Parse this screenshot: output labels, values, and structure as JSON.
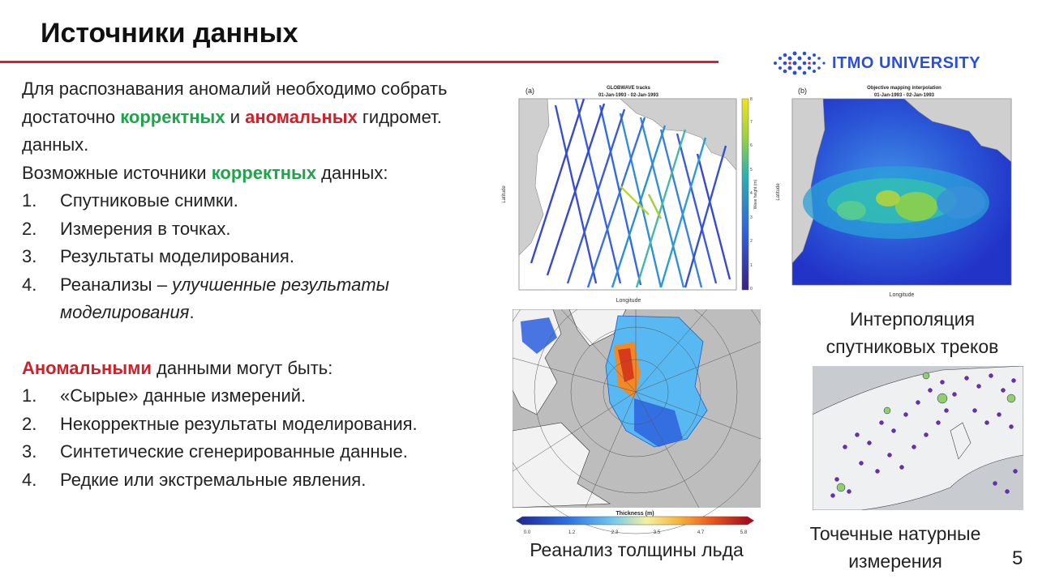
{
  "title": "Источники данных",
  "logo": {
    "text": "ITMO UNIVERSITY"
  },
  "body": {
    "intro": {
      "a": "Для распознавания аномалий необходимо собрать достаточно ",
      "b": "корректных",
      "c": " и ",
      "d": "аномальных",
      "e": " гидромет. данных."
    },
    "possible": {
      "a": "Возможные источники ",
      "b": "корректных",
      "c": " данных:"
    },
    "correct_items": [
      {
        "num": "1.",
        "text": "Спутниковые снимки."
      },
      {
        "num": "2.",
        "text": "Измерения в точках."
      },
      {
        "num": "3.",
        "text": "Результаты моделирования."
      },
      {
        "num": "4.",
        "text": "Реанализы – ",
        "italic": "улучшенные результаты моделирования",
        "tail": "."
      }
    ],
    "anomalous": {
      "a": "Аномальными",
      "b": " данными могут быть:"
    },
    "anomalous_items": [
      {
        "num": "1.",
        "text": "«Сырые» данные измерений."
      },
      {
        "num": "2.",
        "text": "Некорректные результаты моделирования."
      },
      {
        "num": "3.",
        "text": "Синтетические сгенерированные данные."
      },
      {
        "num": "4.",
        "text": "Редкие или экстремальные явления."
      }
    ]
  },
  "figures": {
    "tracks": {
      "panel_label": "(a)",
      "title_line1": "GLOBWAVE tracks",
      "title_line2": "01-Jan-1993 - 02-Jan-1993",
      "ylabel": "Latitude",
      "xlabel": "Longitude",
      "colorbar_label": "Wave height (m)",
      "colorbar_ticks": [
        "0",
        "1",
        "2",
        "3",
        "4",
        "5",
        "6",
        "7",
        "8"
      ]
    },
    "interp": {
      "panel_label": "(b)",
      "title_line1": "Objective mapping interpolation",
      "title_line2": "01-Jan-1993 - 02-Jan-1993",
      "ylabel": "Latitude",
      "xlabel": "Longitude"
    },
    "ice": {
      "colorbar_label": "Thickness (m)",
      "colorbar_ticks": [
        "0.0",
        "1.2",
        "2.3",
        "3.5",
        "4.7",
        "5.8"
      ]
    }
  },
  "captions": {
    "interp": "Интерполяция спутниковых треков",
    "ice": "Реанализ толщины льда",
    "stations": "Точечные натурные измерения"
  },
  "page_number": "5"
}
